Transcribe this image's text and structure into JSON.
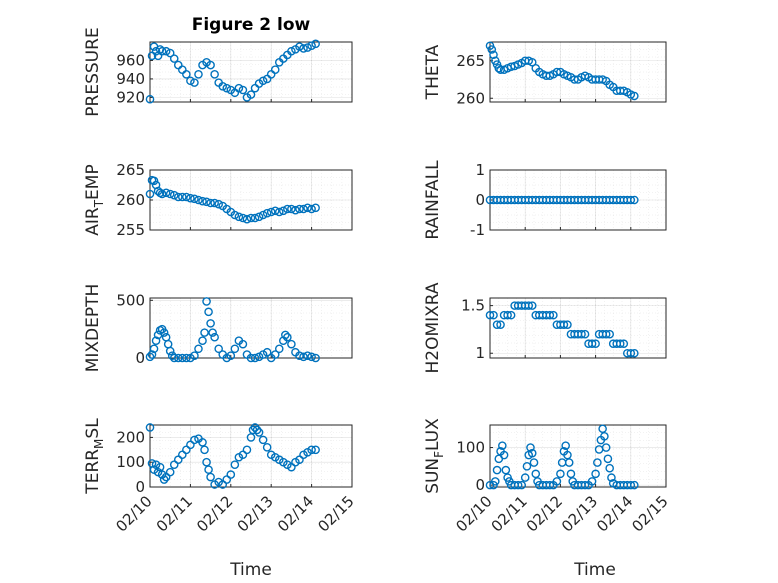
{
  "figure": {
    "title": "Figure 2 low",
    "xlabel": "Time"
  },
  "colors": {
    "marker": "#0072BD",
    "axis": "#262626"
  },
  "x_tick_labels": [
    "02/10",
    "02/11",
    "02/12",
    "02/13",
    "02/14",
    "02/15"
  ],
  "chart_data": [
    {
      "type": "scatter",
      "title": "Figure 2 low",
      "ylabel": "PRESSURE",
      "ylabel_sub": "",
      "xlim": [
        0,
        5
      ],
      "ylim": [
        915,
        980
      ],
      "yticks": [
        920,
        940,
        960
      ],
      "ytick_labels": [
        "920",
        "940",
        "960"
      ],
      "x_ticklabels_shown": false,
      "x": [
        0.0,
        0.05,
        0.1,
        0.15,
        0.2,
        0.25,
        0.3,
        0.4,
        0.5,
        0.6,
        0.7,
        0.8,
        0.9,
        1.0,
        1.1,
        1.2,
        1.3,
        1.4,
        1.5,
        1.6,
        1.7,
        1.8,
        1.9,
        2.0,
        2.1,
        2.2,
        2.3,
        2.4,
        2.5,
        2.6,
        2.7,
        2.8,
        2.9,
        3.0,
        3.1,
        3.2,
        3.3,
        3.4,
        3.5,
        3.6,
        3.7,
        3.8,
        3.9,
        4.0,
        4.1
      ],
      "y": [
        918,
        965,
        975,
        970,
        965,
        972,
        970,
        970,
        968,
        962,
        955,
        950,
        945,
        938,
        936,
        945,
        955,
        958,
        955,
        945,
        936,
        932,
        930,
        928,
        925,
        930,
        928,
        920,
        923,
        930,
        935,
        938,
        940,
        945,
        950,
        958,
        962,
        966,
        970,
        972,
        975,
        973,
        974,
        976,
        978
      ]
    },
    {
      "type": "scatter",
      "title": "",
      "ylabel": "THETA",
      "ylabel_sub": "",
      "xlim": [
        0,
        5
      ],
      "ylim": [
        259.5,
        267.5
      ],
      "yticks": [
        260,
        265
      ],
      "ytick_labels": [
        "260",
        "265"
      ],
      "x_ticklabels_shown": false,
      "x": [
        0.0,
        0.05,
        0.1,
        0.15,
        0.2,
        0.25,
        0.3,
        0.4,
        0.5,
        0.6,
        0.7,
        0.8,
        0.9,
        1.0,
        1.1,
        1.2,
        1.3,
        1.4,
        1.5,
        1.6,
        1.7,
        1.8,
        1.9,
        2.0,
        2.1,
        2.2,
        2.3,
        2.4,
        2.5,
        2.6,
        2.7,
        2.8,
        2.9,
        3.0,
        3.1,
        3.2,
        3.3,
        3.4,
        3.5,
        3.6,
        3.7,
        3.8,
        3.9,
        4.0,
        4.1
      ],
      "y": [
        267.0,
        266.5,
        265.8,
        265.0,
        264.5,
        264.0,
        263.8,
        263.8,
        264.0,
        264.2,
        264.3,
        264.5,
        264.7,
        265.0,
        265.0,
        264.8,
        264.0,
        263.5,
        263.2,
        263.0,
        263.0,
        263.2,
        263.5,
        263.5,
        263.2,
        263.0,
        262.8,
        262.5,
        262.5,
        262.8,
        263.0,
        262.8,
        262.5,
        262.5,
        262.5,
        262.5,
        262.3,
        261.8,
        261.5,
        261.0,
        261.0,
        261.0,
        260.8,
        260.5,
        260.3
      ]
    },
    {
      "type": "scatter",
      "title": "",
      "ylabel": "AIR",
      "ylabel_sub": "T",
      "ylabel_after": "EMP",
      "xlim": [
        0,
        5
      ],
      "ylim": [
        255,
        265
      ],
      "yticks": [
        255,
        260,
        265
      ],
      "ytick_labels": [
        "255",
        "260",
        "265"
      ],
      "x_ticklabels_shown": false,
      "x": [
        0.0,
        0.05,
        0.1,
        0.15,
        0.2,
        0.25,
        0.3,
        0.4,
        0.5,
        0.6,
        0.7,
        0.8,
        0.9,
        1.0,
        1.1,
        1.2,
        1.3,
        1.4,
        1.5,
        1.6,
        1.7,
        1.8,
        1.9,
        2.0,
        2.1,
        2.2,
        2.3,
        2.4,
        2.5,
        2.6,
        2.7,
        2.8,
        2.9,
        3.0,
        3.1,
        3.2,
        3.3,
        3.4,
        3.5,
        3.6,
        3.7,
        3.8,
        3.9,
        4.0,
        4.1
      ],
      "y": [
        261.0,
        263.3,
        263.2,
        262.5,
        261.5,
        261.2,
        261.0,
        261.2,
        261.0,
        260.8,
        260.5,
        260.5,
        260.5,
        260.3,
        260.2,
        260.0,
        259.8,
        259.7,
        259.5,
        259.5,
        259.3,
        259.0,
        258.5,
        258.0,
        257.5,
        257.2,
        257.0,
        256.8,
        257.0,
        257.0,
        257.2,
        257.5,
        257.8,
        258.0,
        258.2,
        258.0,
        258.2,
        258.5,
        258.5,
        258.3,
        258.5,
        258.5,
        258.7,
        258.5,
        258.7
      ]
    },
    {
      "type": "scatter",
      "title": "",
      "ylabel": "RAINFALL",
      "ylabel_sub": "",
      "xlim": [
        0,
        5
      ],
      "ylim": [
        -1,
        1
      ],
      "yticks": [
        -1,
        0,
        1
      ],
      "ytick_labels": [
        "-1",
        "0",
        "1"
      ],
      "x_ticklabels_shown": false,
      "x": [
        0.0,
        0.1,
        0.2,
        0.3,
        0.4,
        0.5,
        0.6,
        0.7,
        0.8,
        0.9,
        1.0,
        1.1,
        1.2,
        1.3,
        1.4,
        1.5,
        1.6,
        1.7,
        1.8,
        1.9,
        2.0,
        2.1,
        2.2,
        2.3,
        2.4,
        2.5,
        2.6,
        2.7,
        2.8,
        2.9,
        3.0,
        3.1,
        3.2,
        3.3,
        3.4,
        3.5,
        3.6,
        3.7,
        3.8,
        3.9,
        4.0,
        4.1
      ],
      "y": [
        0,
        0,
        0,
        0,
        0,
        0,
        0,
        0,
        0,
        0,
        0,
        0,
        0,
        0,
        0,
        0,
        0,
        0,
        0,
        0,
        0,
        0,
        0,
        0,
        0,
        0,
        0,
        0,
        0,
        0,
        0,
        0,
        0,
        0,
        0,
        0,
        0,
        0,
        0,
        0,
        0,
        0
      ]
    },
    {
      "type": "scatter",
      "title": "",
      "ylabel": "MIXDEPTH",
      "ylabel_sub": "",
      "xlim": [
        0,
        5
      ],
      "ylim": [
        0,
        520
      ],
      "yticks": [
        0,
        500
      ],
      "ytick_labels": [
        "0",
        "500"
      ],
      "x_ticklabels_shown": false,
      "x": [
        0.0,
        0.05,
        0.1,
        0.15,
        0.2,
        0.25,
        0.3,
        0.35,
        0.4,
        0.45,
        0.5,
        0.55,
        0.6,
        0.7,
        0.8,
        0.9,
        1.0,
        1.1,
        1.2,
        1.3,
        1.35,
        1.4,
        1.45,
        1.5,
        1.55,
        1.6,
        1.7,
        1.8,
        1.9,
        2.0,
        2.1,
        2.2,
        2.3,
        2.4,
        2.5,
        2.6,
        2.7,
        2.8,
        2.9,
        3.0,
        3.1,
        3.2,
        3.3,
        3.35,
        3.4,
        3.5,
        3.6,
        3.7,
        3.8,
        3.9,
        4.0,
        4.1
      ],
      "y": [
        10,
        30,
        80,
        150,
        200,
        240,
        250,
        220,
        180,
        120,
        60,
        20,
        0,
        0,
        0,
        0,
        0,
        20,
        80,
        150,
        220,
        490,
        400,
        300,
        220,
        180,
        80,
        30,
        0,
        20,
        80,
        150,
        120,
        30,
        0,
        0,
        10,
        30,
        50,
        0,
        30,
        80,
        150,
        200,
        180,
        120,
        50,
        20,
        10,
        20,
        10,
        0
      ]
    },
    {
      "type": "scatter",
      "title": "",
      "ylabel": "H2OMIXRA",
      "ylabel_sub": "",
      "xlim": [
        0,
        5
      ],
      "ylim": [
        0.95,
        1.58
      ],
      "yticks": [
        1,
        1.5
      ],
      "ytick_labels": [
        "1",
        "1.5"
      ],
      "x_ticklabels_shown": false,
      "x": [
        0.0,
        0.1,
        0.2,
        0.3,
        0.4,
        0.5,
        0.6,
        0.7,
        0.8,
        0.9,
        1.0,
        1.1,
        1.2,
        1.3,
        1.4,
        1.5,
        1.6,
        1.7,
        1.8,
        1.9,
        2.0,
        2.1,
        2.2,
        2.3,
        2.4,
        2.5,
        2.6,
        2.7,
        2.8,
        2.9,
        3.0,
        3.1,
        3.2,
        3.3,
        3.4,
        3.5,
        3.6,
        3.7,
        3.8,
        3.9,
        4.0,
        4.1
      ],
      "y": [
        1.4,
        1.4,
        1.3,
        1.3,
        1.4,
        1.4,
        1.4,
        1.5,
        1.5,
        1.5,
        1.5,
        1.5,
        1.5,
        1.4,
        1.4,
        1.4,
        1.4,
        1.4,
        1.4,
        1.3,
        1.3,
        1.3,
        1.3,
        1.2,
        1.2,
        1.2,
        1.2,
        1.2,
        1.1,
        1.1,
        1.1,
        1.2,
        1.2,
        1.2,
        1.2,
        1.1,
        1.1,
        1.1,
        1.1,
        1.0,
        1.0,
        1.0
      ]
    },
    {
      "type": "scatter",
      "title": "",
      "ylabel": "TERR",
      "ylabel_sub": "M",
      "ylabel_after": "SL",
      "xlim": [
        0,
        5
      ],
      "ylim": [
        0,
        250
      ],
      "yticks": [
        0,
        100,
        200
      ],
      "ytick_labels": [
        "0",
        "100",
        "200"
      ],
      "x_ticklabels_shown": true,
      "x": [
        0.0,
        0.05,
        0.1,
        0.15,
        0.2,
        0.25,
        0.3,
        0.35,
        0.4,
        0.5,
        0.6,
        0.7,
        0.8,
        0.9,
        1.0,
        1.1,
        1.2,
        1.3,
        1.35,
        1.4,
        1.45,
        1.5,
        1.6,
        1.7,
        1.8,
        1.9,
        2.0,
        2.1,
        2.2,
        2.3,
        2.4,
        2.5,
        2.55,
        2.6,
        2.65,
        2.7,
        2.8,
        2.9,
        3.0,
        3.1,
        3.2,
        3.3,
        3.4,
        3.5,
        3.6,
        3.7,
        3.8,
        3.9,
        4.0,
        4.1
      ],
      "y": [
        240,
        95,
        70,
        90,
        60,
        80,
        50,
        30,
        40,
        60,
        90,
        110,
        130,
        150,
        170,
        190,
        195,
        180,
        150,
        100,
        70,
        40,
        10,
        20,
        10,
        30,
        50,
        90,
        120,
        130,
        150,
        200,
        230,
        240,
        230,
        220,
        190,
        160,
        130,
        120,
        110,
        100,
        90,
        80,
        100,
        110,
        130,
        140,
        150,
        150
      ]
    },
    {
      "type": "scatter",
      "title": "",
      "ylabel": "SUN",
      "ylabel_sub": "F",
      "ylabel_after": "LUX",
      "xlim": [
        0,
        5
      ],
      "ylim": [
        -5,
        160
      ],
      "yticks": [
        0,
        100
      ],
      "ytick_labels": [
        "0",
        "100"
      ],
      "x_ticklabels_shown": true,
      "x": [
        0.0,
        0.1,
        0.15,
        0.2,
        0.25,
        0.3,
        0.35,
        0.4,
        0.45,
        0.5,
        0.55,
        0.6,
        0.7,
        0.8,
        0.9,
        1.0,
        1.05,
        1.1,
        1.15,
        1.2,
        1.25,
        1.3,
        1.35,
        1.4,
        1.5,
        1.6,
        1.7,
        1.8,
        1.9,
        2.0,
        2.05,
        2.1,
        2.15,
        2.2,
        2.25,
        2.3,
        2.35,
        2.4,
        2.5,
        2.6,
        2.7,
        2.8,
        2.9,
        3.0,
        3.05,
        3.1,
        3.15,
        3.2,
        3.25,
        3.3,
        3.35,
        3.4,
        3.45,
        3.5,
        3.6,
        3.7,
        3.8,
        3.9,
        4.0,
        4.1
      ],
      "y": [
        0,
        0,
        10,
        40,
        70,
        90,
        105,
        80,
        40,
        20,
        10,
        0,
        0,
        0,
        0,
        20,
        50,
        80,
        100,
        85,
        60,
        30,
        10,
        0,
        0,
        0,
        0,
        0,
        10,
        30,
        60,
        90,
        105,
        80,
        60,
        30,
        10,
        0,
        0,
        0,
        0,
        0,
        10,
        30,
        60,
        95,
        120,
        150,
        130,
        100,
        70,
        45,
        20,
        5,
        0,
        0,
        0,
        0,
        0,
        0
      ]
    }
  ]
}
